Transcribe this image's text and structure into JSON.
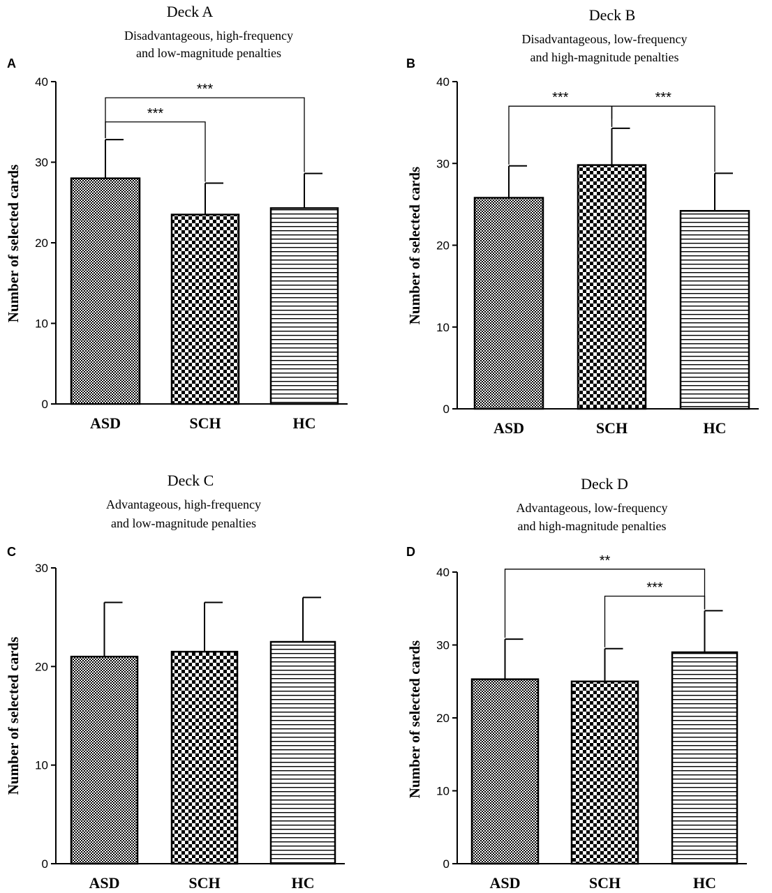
{
  "chart_data": [
    {
      "type": "bar",
      "panel": "A",
      "title": "Deck A",
      "subtitle_lines": [
        "Disadvantageous, high-frequency",
        "and low-magnitude penalties"
      ],
      "ylabel": "Number of selected cards",
      "xlabel": "",
      "ylim": [
        0,
        40
      ],
      "yticks": [
        0,
        10,
        20,
        30,
        40
      ],
      "categories": [
        "ASD",
        "SCH",
        "HC"
      ],
      "values": [
        28,
        23.5,
        24.3
      ],
      "errors": [
        4.8,
        3.9,
        4.3
      ],
      "patterns": [
        "fine-check",
        "checker",
        "hstripes"
      ],
      "significance": [
        {
          "from": 0,
          "to": 2,
          "label": "***",
          "level": 38
        },
        {
          "from": 0,
          "to": 1,
          "label": "***",
          "level": 35
        }
      ]
    },
    {
      "type": "bar",
      "panel": "B",
      "title": "Deck B",
      "subtitle_lines": [
        "Disadvantageous, low-frequency",
        "and high-magnitude penalties"
      ],
      "ylabel": "Number of selected cards",
      "xlabel": "",
      "ylim": [
        0,
        40
      ],
      "yticks": [
        0,
        10,
        20,
        30,
        40
      ],
      "categories": [
        "ASD",
        "SCH",
        "HC"
      ],
      "values": [
        25.8,
        29.8,
        24.2
      ],
      "errors": [
        3.9,
        4.5,
        4.6
      ],
      "patterns": [
        "fine-check",
        "checker",
        "hstripes"
      ],
      "significance": [
        {
          "from": 0,
          "to": 1,
          "label": "***",
          "level": 37,
          "mid_tick": true
        },
        {
          "from": 1,
          "to": 2,
          "label": "***",
          "level": 37
        }
      ]
    },
    {
      "type": "bar",
      "panel": "C",
      "title": "Deck C",
      "subtitle_lines": [
        "Advantageous, high-frequency",
        "and low-magnitude penalties"
      ],
      "ylabel": "Number of selected cards",
      "xlabel": "",
      "ylim": [
        0,
        30
      ],
      "yticks": [
        0,
        10,
        20,
        30
      ],
      "categories": [
        "ASD",
        "SCH",
        "HC"
      ],
      "values": [
        21,
        21.5,
        22.5
      ],
      "errors": [
        5.5,
        5,
        4.5
      ],
      "patterns": [
        "fine-check",
        "checker",
        "hstripes"
      ],
      "significance": []
    },
    {
      "type": "bar",
      "panel": "D",
      "title": "Deck D",
      "subtitle_lines": [
        "Advantageous, low-frequency",
        "and high-magnitude penalties"
      ],
      "ylabel": "Number of selected cards",
      "xlabel": "",
      "ylim": [
        0,
        40
      ],
      "yticks": [
        0,
        10,
        20,
        30,
        40
      ],
      "categories": [
        "ASD",
        "SCH",
        "HC"
      ],
      "values": [
        25.3,
        25,
        29
      ],
      "errors": [
        5.5,
        4.5,
        5.7
      ],
      "patterns": [
        "fine-check",
        "checker",
        "hstripes"
      ],
      "significance": [
        {
          "from": 0,
          "to": 2,
          "label": "**",
          "level": 40.4
        },
        {
          "from": 1,
          "to": 2,
          "label": "***",
          "level": 36.7
        }
      ]
    }
  ]
}
